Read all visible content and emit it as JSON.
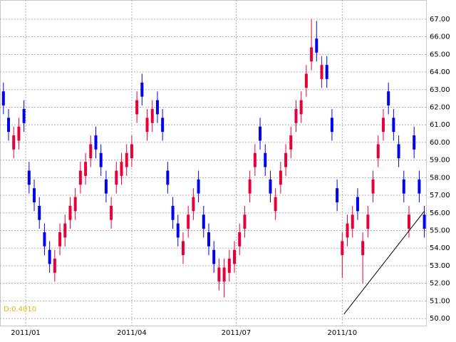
{
  "chart_data": {
    "type": "candlestick",
    "x": [
      0,
      3,
      6,
      9,
      12,
      15,
      18,
      21,
      24,
      27,
      30,
      33,
      36,
      39,
      42,
      45,
      48,
      51,
      54,
      57,
      60,
      63,
      66,
      69,
      72,
      75,
      78,
      81,
      84,
      87,
      90,
      93,
      96,
      99,
      102,
      105,
      108,
      111,
      114,
      117,
      120,
      123,
      126,
      129,
      132,
      135,
      138,
      141,
      144,
      147,
      150,
      153,
      156,
      159,
      162,
      165,
      168,
      171,
      174,
      177,
      180,
      183,
      186,
      189,
      192,
      195,
      198,
      201,
      204,
      207,
      210,
      213,
      216,
      219,
      222,
      225,
      228,
      231,
      234,
      237,
      240,
      243,
      246
    ],
    "open": [
      62.9,
      61.4,
      59.6,
      60.1,
      61.9,
      58.4,
      57.4,
      56.4,
      54.9,
      53.9,
      52.6,
      54.1,
      54.6,
      55.6,
      56.1,
      57.6,
      58.1,
      59.1,
      60.4,
      59.4,
      57.9,
      55.6,
      57.6,
      58.1,
      58.6,
      59.1,
      61.6,
      63.4,
      60.6,
      61.1,
      62.4,
      61.4,
      58.4,
      56.4,
      55.4,
      53.6,
      55.1,
      56.1,
      57.9,
      55.9,
      54.9,
      53.9,
      52.1,
      52.1,
      52.6,
      53.1,
      54.1,
      55.1,
      57.1,
      58.6,
      60.9,
      59.4,
      57.9,
      56.1,
      57.6,
      58.6,
      59.6,
      61.1,
      61.6,
      63.1,
      64.6,
      65.9,
      63.6,
      64.4,
      61.4,
      57.4,
      53.6,
      54.6,
      55.1,
      56.9,
      53.6,
      55.1,
      57.1,
      59.1,
      60.6,
      62.9,
      61.4,
      59.9,
      57.9,
      55.1,
      60.4,
      57.9,
      55.9
    ],
    "high": [
      63.4,
      61.9,
      60.9,
      61.4,
      62.4,
      58.9,
      57.9,
      56.9,
      55.4,
      54.4,
      53.9,
      55.4,
      55.9,
      56.9,
      57.4,
      58.9,
      59.4,
      60.4,
      60.9,
      59.9,
      58.4,
      56.9,
      58.9,
      59.4,
      59.9,
      60.4,
      62.9,
      63.9,
      61.9,
      62.4,
      62.9,
      61.9,
      58.9,
      56.9,
      55.9,
      54.9,
      56.4,
      57.4,
      58.4,
      56.4,
      55.4,
      54.4,
      53.4,
      53.4,
      53.9,
      54.4,
      55.4,
      56.4,
      58.4,
      59.9,
      61.4,
      59.9,
      58.4,
      57.4,
      58.9,
      59.9,
      60.9,
      62.4,
      62.9,
      64.4,
      67.0,
      66.9,
      64.9,
      64.9,
      61.9,
      57.9,
      54.9,
      55.9,
      56.4,
      57.4,
      54.9,
      56.4,
      58.4,
      60.4,
      61.9,
      63.4,
      61.9,
      60.4,
      58.4,
      56.4,
      60.9,
      58.4,
      56.4
    ],
    "low": [
      61.6,
      60.1,
      59.1,
      59.6,
      60.6,
      57.1,
      56.1,
      55.1,
      53.6,
      52.6,
      52.1,
      53.6,
      54.1,
      55.1,
      55.6,
      57.1,
      57.6,
      58.6,
      59.1,
      58.1,
      56.6,
      55.1,
      57.1,
      57.6,
      58.1,
      58.6,
      61.1,
      62.1,
      60.1,
      60.6,
      61.1,
      60.1,
      57.1,
      55.1,
      54.1,
      53.1,
      54.6,
      55.6,
      56.6,
      54.6,
      53.6,
      52.6,
      51.6,
      51.2,
      52.1,
      52.6,
      53.6,
      54.6,
      56.6,
      58.1,
      59.6,
      58.1,
      56.6,
      55.6,
      57.1,
      58.1,
      59.1,
      60.6,
      61.1,
      62.6,
      64.1,
      64.6,
      63.1,
      63.1,
      60.1,
      56.1,
      52.3,
      54.1,
      54.6,
      55.6,
      52.0,
      54.6,
      56.6,
      58.6,
      60.1,
      61.6,
      60.1,
      58.6,
      56.6,
      54.6,
      59.1,
      56.6,
      54.6
    ],
    "close": [
      62.1,
      60.6,
      60.4,
      60.9,
      61.1,
      57.6,
      56.6,
      55.6,
      54.1,
      53.1,
      53.4,
      54.9,
      55.4,
      56.4,
      56.9,
      58.4,
      58.9,
      59.9,
      59.6,
      58.6,
      57.1,
      56.4,
      58.4,
      58.9,
      59.4,
      59.9,
      62.4,
      62.6,
      61.4,
      61.9,
      61.6,
      60.6,
      57.6,
      55.6,
      54.6,
      54.4,
      55.9,
      56.9,
      57.1,
      55.1,
      54.1,
      53.1,
      52.9,
      52.9,
      53.4,
      53.9,
      54.9,
      55.9,
      57.9,
      59.4,
      60.1,
      58.6,
      57.1,
      56.9,
      58.4,
      59.4,
      60.4,
      61.9,
      62.4,
      63.9,
      65.4,
      65.1,
      64.4,
      63.6,
      60.6,
      56.6,
      54.4,
      55.4,
      55.9,
      56.1,
      54.4,
      55.9,
      57.9,
      59.9,
      61.4,
      62.1,
      60.6,
      59.1,
      57.1,
      55.9,
      59.6,
      57.1,
      55.1
    ],
    "up_color": "#e8003a",
    "down_color": "#0000ee",
    "xlim": [
      -2,
      247
    ],
    "xticks": [
      {
        "value": 13,
        "label": "2011/01"
      },
      {
        "value": 75,
        "label": "2011/04"
      },
      {
        "value": 136,
        "label": "2011/07"
      },
      {
        "value": 198,
        "label": "2011/10"
      }
    ],
    "ylim": [
      49.6,
      67.36
    ],
    "yticks": [
      {
        "value": 50,
        "label": "50.00"
      },
      {
        "value": 51,
        "label": "51.00"
      },
      {
        "value": 52,
        "label": "52.00"
      },
      {
        "value": 53,
        "label": "53.00"
      },
      {
        "value": 54,
        "label": "54.00"
      },
      {
        "value": 55,
        "label": "55.00"
      },
      {
        "value": 56,
        "label": "56.00"
      },
      {
        "value": 57,
        "label": "57.00"
      },
      {
        "value": 58,
        "label": "58.00"
      },
      {
        "value": 59,
        "label": "59.00"
      },
      {
        "value": 60,
        "label": "60.00"
      },
      {
        "value": 61,
        "label": "61.00"
      },
      {
        "value": 62,
        "label": "62.00"
      },
      {
        "value": 63,
        "label": "63.00"
      },
      {
        "value": 64,
        "label": "64.00"
      },
      {
        "value": 65,
        "label": "65.00"
      },
      {
        "value": 66,
        "label": "66.00"
      },
      {
        "value": 67,
        "label": "67.00"
      }
    ],
    "grid": true,
    "trendline": {
      "x": [
        199,
        246
      ],
      "y": [
        50.25,
        56.1
      ],
      "color": "#000000"
    },
    "annotation": {
      "text": "D:0.4010",
      "color": "#e8b800"
    }
  }
}
